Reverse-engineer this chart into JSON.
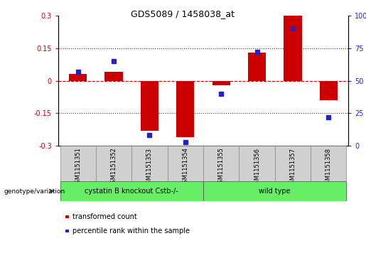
{
  "title": "GDS5089 / 1458038_at",
  "samples": [
    "GSM1151351",
    "GSM1151352",
    "GSM1151353",
    "GSM1151354",
    "GSM1151355",
    "GSM1151356",
    "GSM1151357",
    "GSM1151358"
  ],
  "transformed_count": [
    0.03,
    0.04,
    -0.23,
    -0.26,
    -0.02,
    0.13,
    0.3,
    -0.09
  ],
  "percentile_rank": [
    57,
    65,
    8,
    3,
    40,
    72,
    90,
    22
  ],
  "ylim_left": [
    -0.3,
    0.3
  ],
  "ylim_right": [
    0,
    100
  ],
  "yticks_left": [
    -0.3,
    -0.15,
    0,
    0.15,
    0.3
  ],
  "yticks_right": [
    0,
    25,
    50,
    75,
    100
  ],
  "bar_color": "#cc0000",
  "dot_color": "#2222cc",
  "zero_line_color": "#cc0000",
  "dotted_line_color": "#333333",
  "group1_label": "cystatin B knockout Cstb-/-",
  "group2_label": "wild type",
  "group1_count": 4,
  "group2_count": 4,
  "group_color": "#66ee66",
  "sample_box_color": "#d0d0d0",
  "legend_label1": "transformed count",
  "legend_label2": "percentile rank within the sample",
  "genotype_label": "genotype/variation",
  "bar_width": 0.5,
  "title_fontsize": 9,
  "tick_fontsize": 7,
  "label_fontsize": 7,
  "sample_fontsize": 6
}
